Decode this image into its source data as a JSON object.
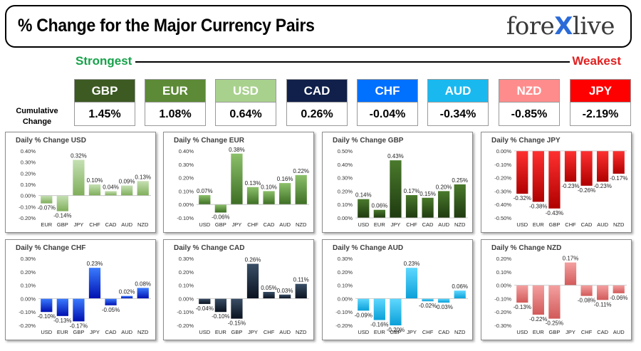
{
  "header": {
    "title": "% Change for the Major Currency Pairs",
    "logo": {
      "prefix": "fore",
      "mark": "X",
      "suffix": "live"
    }
  },
  "scale": {
    "strongest": "Strongest",
    "weakest": "Weakest"
  },
  "cumulative_label": [
    "Cumulative",
    "Change"
  ],
  "currencies": [
    {
      "code": "GBP",
      "value": "1.45%",
      "color": "#3c5a22"
    },
    {
      "code": "EUR",
      "value": "1.08%",
      "color": "#5c8a36"
    },
    {
      "code": "USD",
      "value": "0.64%",
      "color": "#a9d18e"
    },
    {
      "code": "CAD",
      "value": "0.26%",
      "color": "#10204a"
    },
    {
      "code": "CHF",
      "value": "-0.04%",
      "color": "#0070ff"
    },
    {
      "code": "AUD",
      "value": "-0.34%",
      "color": "#19b9f0"
    },
    {
      "code": "NZD",
      "value": "-0.85%",
      "color": "#ff8c8c"
    },
    {
      "code": "JPY",
      "value": "-2.19%",
      "color": "#ff0000"
    }
  ],
  "chart_data": [
    {
      "type": "bar",
      "title": "Daily % Change USD",
      "categories": [
        "EUR",
        "GBP",
        "JPY",
        "CHF",
        "CAD",
        "AUD",
        "NZD"
      ],
      "values": [
        -0.07,
        -0.14,
        0.32,
        0.1,
        0.04,
        0.09,
        0.13
      ],
      "labels": [
        "-0.07%",
        "-0.14%",
        "0.32%",
        "0.10%",
        "0.04%",
        "0.09%",
        "0.13%"
      ],
      "ylim": [
        -0.2,
        0.4
      ],
      "ticks": [
        -0.2,
        -0.1,
        0,
        0.1,
        0.2,
        0.3,
        0.4
      ],
      "tick_labels": [
        "-0.20%",
        "-0.10%",
        "0.00%",
        "0.10%",
        "0.20%",
        "0.30%",
        "0.40%"
      ],
      "color_top": "#c5e0b3",
      "color_bottom": "#7fae5a"
    },
    {
      "type": "bar",
      "title": "Daily % Change EUR",
      "categories": [
        "USD",
        "GBP",
        "JPY",
        "CHF",
        "CAD",
        "AUD",
        "NZD"
      ],
      "values": [
        0.07,
        -0.06,
        0.38,
        0.13,
        0.1,
        0.16,
        0.22
      ],
      "labels": [
        "0.07%",
        "-0.06%",
        "0.38%",
        "0.13%",
        "0.10%",
        "0.16%",
        "0.22%"
      ],
      "ylim": [
        -0.1,
        0.4
      ],
      "ticks": [
        -0.1,
        0,
        0.1,
        0.2,
        0.3,
        0.4
      ],
      "tick_labels": [
        "-0.10%",
        "0.00%",
        "0.10%",
        "0.20%",
        "0.30%",
        "0.40%"
      ],
      "color_top": "#8cc06a",
      "color_bottom": "#3d6e24"
    },
    {
      "type": "bar",
      "title": "Daily % Change GBP",
      "categories": [
        "USD",
        "EUR",
        "JPY",
        "CHF",
        "CAD",
        "AUD",
        "NZD"
      ],
      "values": [
        0.14,
        0.06,
        0.43,
        0.17,
        0.15,
        0.2,
        0.25
      ],
      "labels": [
        "0.14%",
        "0.06%",
        "0.43%",
        "0.17%",
        "0.15%",
        "0.20%",
        "0.25%"
      ],
      "ylim": [
        0,
        0.5
      ],
      "ticks": [
        0,
        0.1,
        0.2,
        0.3,
        0.4,
        0.5
      ],
      "tick_labels": [
        "0.00%",
        "0.10%",
        "0.20%",
        "0.30%",
        "0.40%",
        "0.50%"
      ],
      "color_top": "#4a7a2c",
      "color_bottom": "#1f3a10"
    },
    {
      "type": "bar",
      "title": "Daily % Change JPY",
      "categories": [
        "USD",
        "EUR",
        "GBP",
        "CHF",
        "CAD",
        "AUD",
        "NZD"
      ],
      "values": [
        -0.32,
        -0.38,
        -0.43,
        -0.23,
        -0.26,
        -0.23,
        -0.17
      ],
      "labels": [
        "-0.32%",
        "-0.38%",
        "-0.43%",
        "-0.23%",
        "-0.26%",
        "-0.23%",
        "-0.17%"
      ],
      "ylim": [
        -0.5,
        0
      ],
      "ticks": [
        -0.5,
        -0.4,
        -0.3,
        -0.2,
        -0.1,
        0
      ],
      "tick_labels": [
        "-0.50%",
        "-0.40%",
        "-0.30%",
        "-0.20%",
        "-0.10%",
        "0.00%"
      ],
      "color_top": "#ff3030",
      "color_bottom": "#b00000"
    },
    {
      "type": "bar",
      "title": "Daily % Change CHF",
      "categories": [
        "USD",
        "EUR",
        "GBP",
        "JPY",
        "CAD",
        "AUD",
        "NZD"
      ],
      "values": [
        -0.1,
        -0.13,
        -0.17,
        0.23,
        -0.05,
        0.02,
        0.08
      ],
      "labels": [
        "-0.10%",
        "-0.13%",
        "-0.17%",
        "0.23%",
        "-0.05%",
        "0.02%",
        "0.08%"
      ],
      "ylim": [
        -0.2,
        0.3
      ],
      "ticks": [
        -0.2,
        -0.1,
        0,
        0.1,
        0.2,
        0.3
      ],
      "tick_labels": [
        "-0.20%",
        "-0.10%",
        "0.00%",
        "0.10%",
        "0.20%",
        "0.30%"
      ],
      "color_top": "#3a7bff",
      "color_bottom": "#0010b0"
    },
    {
      "type": "bar",
      "title": "Daily % Change CAD",
      "categories": [
        "USD",
        "EUR",
        "GBP",
        "JPY",
        "CHF",
        "AUD",
        "NZD"
      ],
      "values": [
        -0.04,
        -0.1,
        -0.15,
        0.26,
        0.05,
        0.03,
        0.11
      ],
      "labels": [
        "-0.04%",
        "-0.10%",
        "-0.15%",
        "0.26%",
        "0.05%",
        "0.03%",
        "0.11%"
      ],
      "ylim": [
        -0.2,
        0.3
      ],
      "ticks": [
        -0.2,
        -0.1,
        0,
        0.1,
        0.2,
        0.3
      ],
      "tick_labels": [
        "-0.20%",
        "-0.10%",
        "0.00%",
        "0.10%",
        "0.20%",
        "0.30%"
      ],
      "color_top": "#3a4f66",
      "color_bottom": "#0a1220"
    },
    {
      "type": "bar",
      "title": "Daily % Change AUD",
      "categories": [
        "USD",
        "EUR",
        "GBP",
        "JPY",
        "CHF",
        "CAD",
        "NZD"
      ],
      "values": [
        -0.09,
        -0.16,
        -0.2,
        0.23,
        -0.02,
        -0.03,
        0.06
      ],
      "labels": [
        "-0.09%",
        "-0.16%",
        "-0.20%",
        "0.23%",
        "-0.02%",
        "-0.03%",
        "0.06%"
      ],
      "ylim": [
        -0.2,
        0.3
      ],
      "ticks": [
        -0.2,
        -0.1,
        0,
        0.1,
        0.2,
        0.3
      ],
      "tick_labels": [
        "-0.20%",
        "-0.10%",
        "0.00%",
        "0.10%",
        "0.20%",
        "0.30%"
      ],
      "color_top": "#5fd8ff",
      "color_bottom": "#0aa0d8"
    },
    {
      "type": "bar",
      "title": "Daily % Change NZD",
      "categories": [
        "USD",
        "EUR",
        "GBP",
        "JPY",
        "CHF",
        "CAD",
        "AUD"
      ],
      "values": [
        -0.13,
        -0.22,
        -0.25,
        0.17,
        -0.08,
        -0.11,
        -0.06
      ],
      "labels": [
        "-0.13%",
        "-0.22%",
        "-0.25%",
        "0.17%",
        "-0.08%",
        "-0.11%",
        "-0.06%"
      ],
      "ylim": [
        -0.3,
        0.2
      ],
      "ticks": [
        -0.3,
        -0.2,
        -0.1,
        0,
        0.1,
        0.2
      ],
      "tick_labels": [
        "-0.30%",
        "-0.20%",
        "-0.10%",
        "0.00%",
        "0.10%",
        "0.20%"
      ],
      "color_top": "#f4a0a0",
      "color_bottom": "#d25a5a"
    }
  ]
}
